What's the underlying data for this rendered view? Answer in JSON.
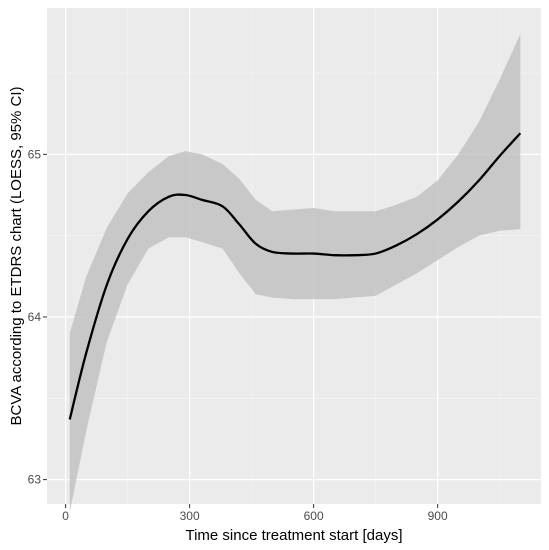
{
  "chart_data": {
    "type": "line",
    "title": "",
    "xlabel": "Time since treatment start [days]",
    "ylabel": "BCVA according to ETDRS chart (LOESS, 95% CI)",
    "xlim": [
      -45,
      1150
    ],
    "ylim": [
      62.85,
      65.9
    ],
    "x_ticks": [
      0,
      300,
      600,
      900
    ],
    "x_minor_ticks": [
      150,
      450,
      750,
      1050
    ],
    "y_ticks": [
      63,
      64,
      65
    ],
    "y_minor_ticks": [
      63.5,
      64.5,
      65.5
    ],
    "grid": true,
    "legend": "none",
    "series": [
      {
        "x": [
          10,
          50,
          100,
          150,
          200,
          250,
          290,
          330,
          380,
          420,
          460,
          500,
          550,
          600,
          650,
          700,
          750,
          800,
          850,
          900,
          950,
          1000,
          1050,
          1100
        ],
        "y": [
          63.37,
          63.78,
          64.2,
          64.48,
          64.65,
          64.74,
          64.75,
          64.72,
          64.68,
          64.57,
          64.45,
          64.4,
          64.39,
          64.39,
          64.38,
          64.38,
          64.39,
          64.44,
          64.51,
          64.6,
          64.71,
          64.84,
          64.99,
          65.13
        ],
        "lower": [
          62.8,
          63.3,
          63.85,
          64.2,
          64.42,
          64.49,
          64.49,
          64.46,
          64.42,
          64.27,
          64.14,
          64.12,
          64.11,
          64.11,
          64.11,
          64.12,
          64.13,
          64.2,
          64.27,
          64.35,
          64.43,
          64.5,
          64.53,
          64.54
        ],
        "upper": [
          63.9,
          64.25,
          64.55,
          64.76,
          64.89,
          64.99,
          65.02,
          65.0,
          64.94,
          64.85,
          64.72,
          64.65,
          64.66,
          64.67,
          64.65,
          64.65,
          64.65,
          64.69,
          64.74,
          64.84,
          65.0,
          65.2,
          65.46,
          65.74
        ]
      }
    ],
    "colors": {
      "panel_background": "#ebebeb",
      "major_grid": "#ffffff",
      "minor_grid": "#f5f5f5",
      "line": "#000000",
      "band": "#c2c2c2",
      "tick_text": "#4d4d4d",
      "tick_mark": "#333333"
    }
  }
}
